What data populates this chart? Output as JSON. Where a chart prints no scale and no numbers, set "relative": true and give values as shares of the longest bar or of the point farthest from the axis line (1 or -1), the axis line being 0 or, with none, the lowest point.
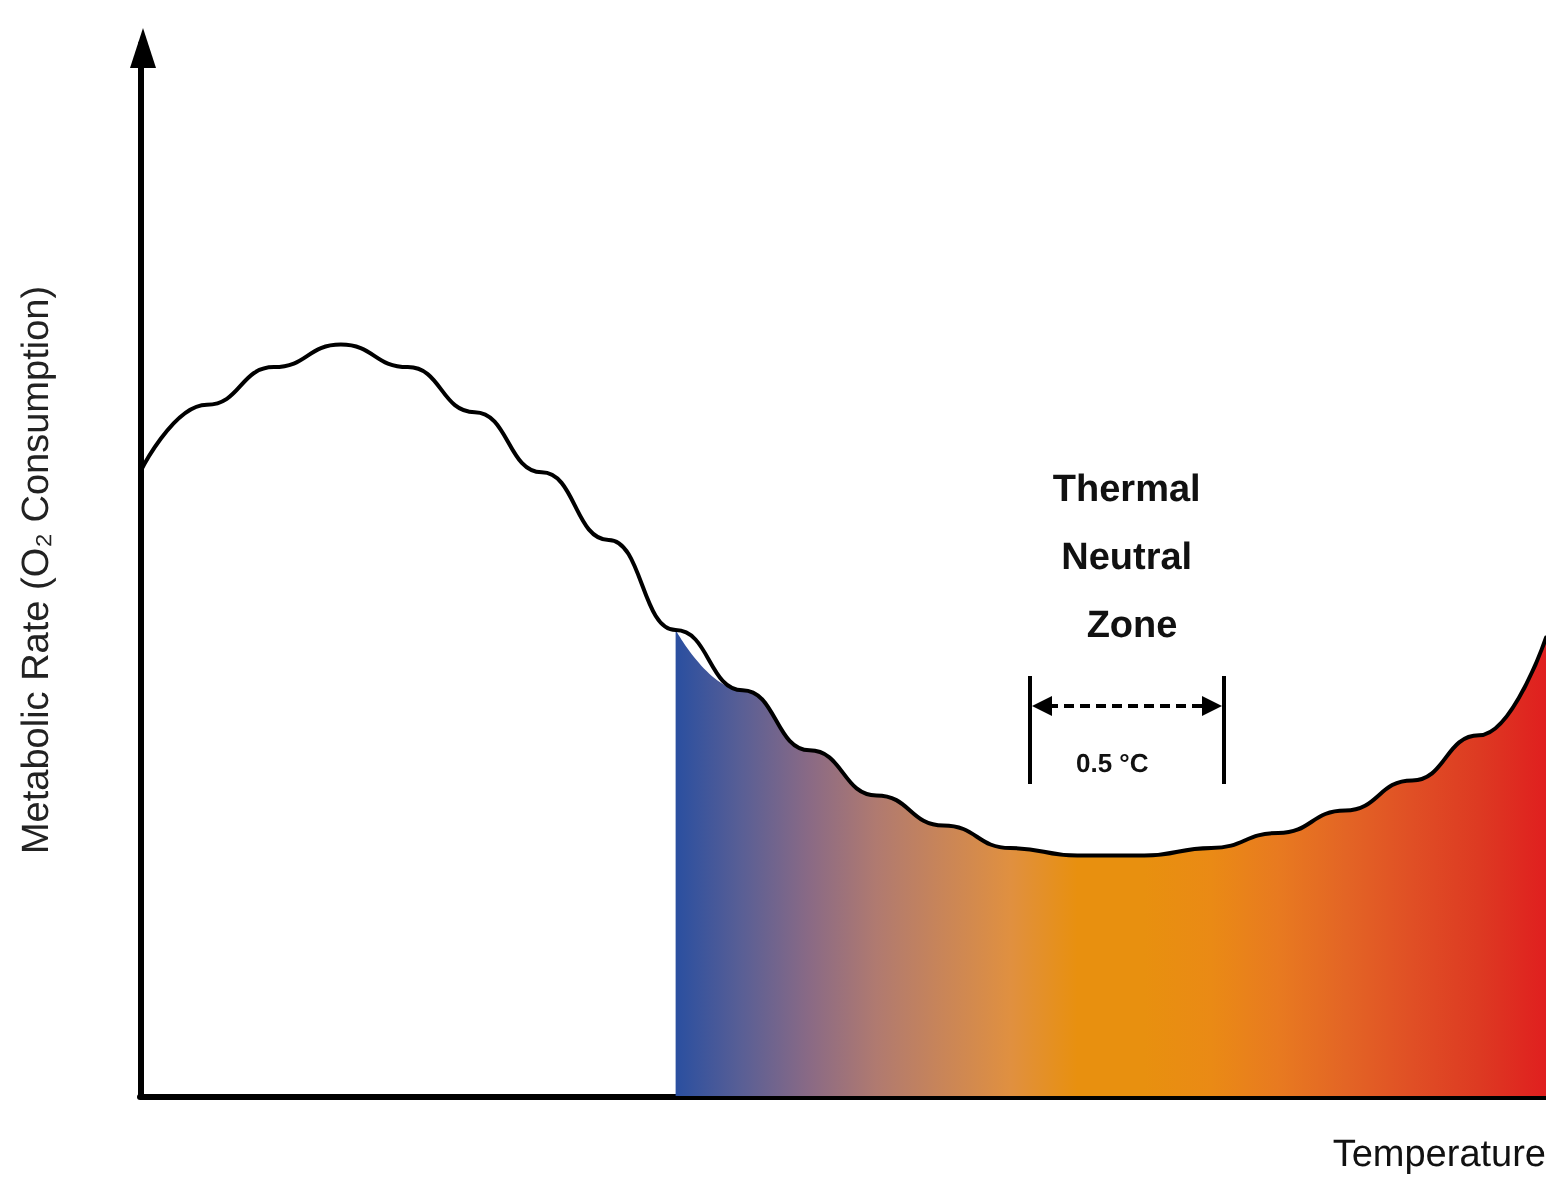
{
  "chart_data": {
    "type": "line",
    "relative": true,
    "xlabel": "Temperature",
    "ylabel": "Metabolic Rate (O₂ Consumption)",
    "categories": [
      null,
      null,
      null,
      null,
      null,
      null,
      null,
      null,
      null,
      null,
      null,
      null,
      null,
      null,
      null,
      null,
      null,
      null,
      null,
      null,
      null,
      null
    ],
    "series": [
      {
        "type": "area",
        "color": "#e8900f",
        "colors": [
          null,
          null,
          null,
          null,
          null,
          null,
          null,
          null,
          "#2a4fa0",
          "#5a5f95",
          "#8a6a85",
          "#b07a70",
          "#c98558",
          "#e09040",
          "#e8900f",
          "#e8900f",
          "#ea8a15",
          "#e87a20",
          "#e36525",
          "#e04f25",
          "#dd3a22",
          "#e01f1f"
        ],
        "values": [
          null,
          null,
          null,
          null,
          null,
          null,
          null,
          null,
          0.62,
          0.54,
          0.46,
          0.4,
          0.36,
          0.33,
          0.32,
          0.32,
          0.33,
          0.35,
          0.38,
          0.42,
          0.48,
          0.61
        ]
      },
      {
        "color": "#000000",
        "values": [
          0.83,
          0.92,
          0.97,
          1.0,
          0.97,
          0.91,
          0.83,
          0.74,
          0.62,
          0.54,
          0.46,
          0.4,
          0.36,
          0.33,
          0.32,
          0.32,
          0.33,
          0.35,
          0.38,
          0.42,
          0.48,
          0.61
        ]
      }
    ],
    "annotations": [
      "Thermal Neutral Zone",
      "0.5 °C"
    ],
    "grid": false,
    "marker": "none",
    "line_style": "solid"
  }
}
